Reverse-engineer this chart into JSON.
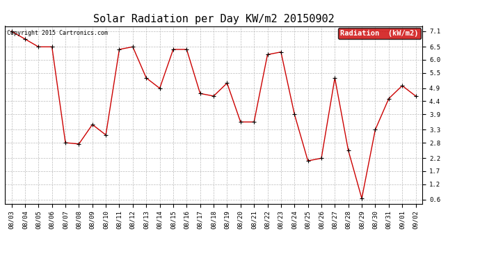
{
  "title": "Solar Radiation per Day KW/m2 20150902",
  "copyright": "Copyright 2015 Cartronics.com",
  "legend_label": "Radiation  (kW/m2)",
  "background_color": "#ffffff",
  "plot_bg_color": "#ffffff",
  "grid_color": "#bbbbbb",
  "line_color": "#cc0000",
  "marker_color": "#000000",
  "legend_bg": "#cc0000",
  "legend_text_color": "#ffffff",
  "dates": [
    "08/03",
    "08/04",
    "08/05",
    "08/06",
    "08/07",
    "08/08",
    "08/09",
    "08/10",
    "08/11",
    "08/12",
    "08/13",
    "08/14",
    "08/15",
    "08/16",
    "08/17",
    "08/18",
    "08/19",
    "08/20",
    "08/21",
    "08/22",
    "08/23",
    "08/24",
    "08/25",
    "08/26",
    "08/27",
    "08/28",
    "08/29",
    "08/30",
    "08/31",
    "09/01",
    "09/02"
  ],
  "values": [
    7.1,
    6.8,
    6.5,
    6.5,
    2.8,
    2.75,
    3.5,
    3.1,
    6.4,
    6.5,
    5.3,
    4.9,
    6.4,
    6.4,
    4.7,
    4.6,
    5.1,
    3.6,
    3.6,
    6.2,
    6.3,
    3.9,
    2.1,
    2.2,
    5.3,
    2.5,
    0.65,
    3.3,
    4.5,
    5.0,
    4.6
  ],
  "yticks": [
    0.6,
    1.2,
    1.7,
    2.2,
    2.8,
    3.3,
    3.9,
    4.4,
    4.9,
    5.5,
    6.0,
    6.5,
    7.1
  ],
  "ylim": [
    0.45,
    7.3
  ],
  "title_fontsize": 11,
  "tick_fontsize": 6.5,
  "legend_fontsize": 7.5,
  "copyright_fontsize": 6.0
}
